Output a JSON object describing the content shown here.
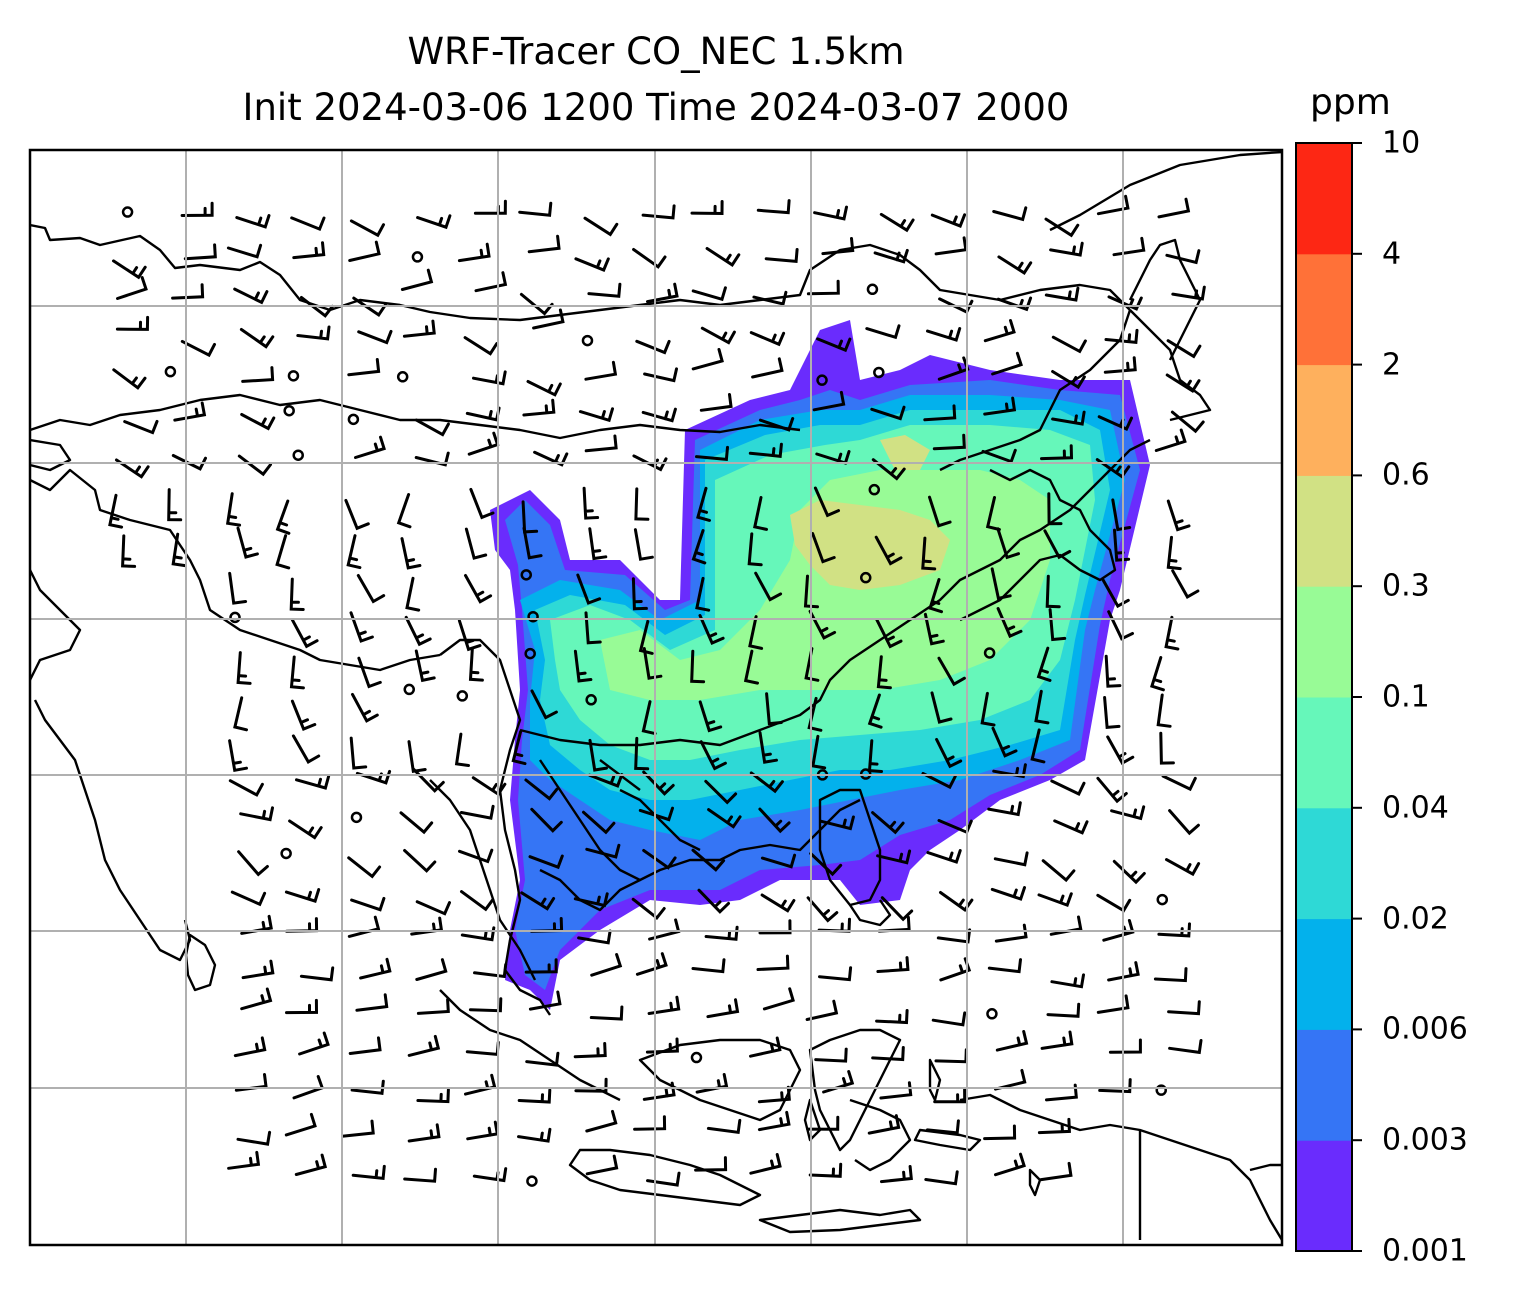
{
  "title": {
    "line1": "WRF-Tracer CO_NEC 1.5km",
    "line2": "Init 2024-03-06 1200 Time 2024-03-07 2000"
  },
  "colorbar": {
    "unit": "ppm",
    "ticks": [
      "0.001",
      "0.003",
      "0.006",
      "0.02",
      "0.04",
      "0.1",
      "0.3",
      "0.6",
      "2",
      "4",
      "10"
    ],
    "colors": [
      "#6a2cfd",
      "#3575f5",
      "#03b1ec",
      "#2ed9d6",
      "#66f7ba",
      "#98fb96",
      "#d1e184",
      "#feb05d",
      "#ff7138",
      "#fd2714"
    ]
  },
  "map": {
    "gridlines": true,
    "coastlines": true,
    "wind_barbs": true,
    "tracer_levels": [
      {
        "level": 0,
        "color": "#6a2cfd"
      },
      {
        "level": 1,
        "color": "#3575f5"
      },
      {
        "level": 2,
        "color": "#03b1ec"
      },
      {
        "level": 3,
        "color": "#2ed9d6"
      },
      {
        "level": 4,
        "color": "#66f7ba"
      },
      {
        "level": 5,
        "color": "#98fb96"
      },
      {
        "level": 6,
        "color": "#d1e184"
      }
    ]
  }
}
